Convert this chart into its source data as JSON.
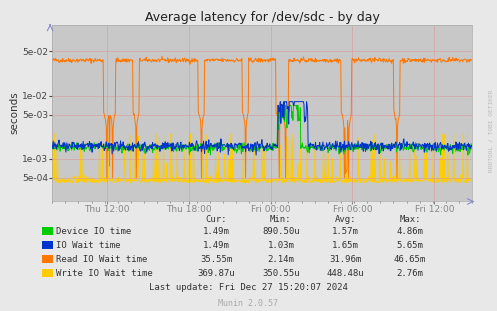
{
  "title": "Average latency for /dev/sdc - by day",
  "ylabel": "seconds",
  "background_color": "#e8e8e8",
  "plot_bg_color": "#c8c8c8",
  "x_ticks_labels": [
    "Thu 12:00",
    "Thu 18:00",
    "Fri 00:00",
    "Fri 06:00",
    "Fri 12:00"
  ],
  "legend_entries": [
    {
      "label": "Device IO time",
      "color": "#00cc00"
    },
    {
      "label": "IO Wait time",
      "color": "#0033cc"
    },
    {
      "label": "Read IO Wait time",
      "color": "#ff7700"
    },
    {
      "label": "Write IO Wait time",
      "color": "#ffcc00"
    }
  ],
  "legend_stats": {
    "headers": [
      "Cur:",
      "Min:",
      "Avg:",
      "Max:"
    ],
    "rows": [
      [
        "1.49m",
        "890.50u",
        "1.57m",
        "4.86m"
      ],
      [
        "1.49m",
        "1.03m",
        "1.65m",
        "5.65m"
      ],
      [
        "35.55m",
        "2.14m",
        "31.96m",
        "46.65m"
      ],
      [
        "369.87u",
        "350.55u",
        "448.48u",
        "2.76m"
      ]
    ]
  },
  "last_update": "Last update: Fri Dec 27 15:20:07 2024",
  "munin_version": "Munin 2.0.57",
  "rrdtool_label": "RRDTOOL / TOBI OETIKER"
}
